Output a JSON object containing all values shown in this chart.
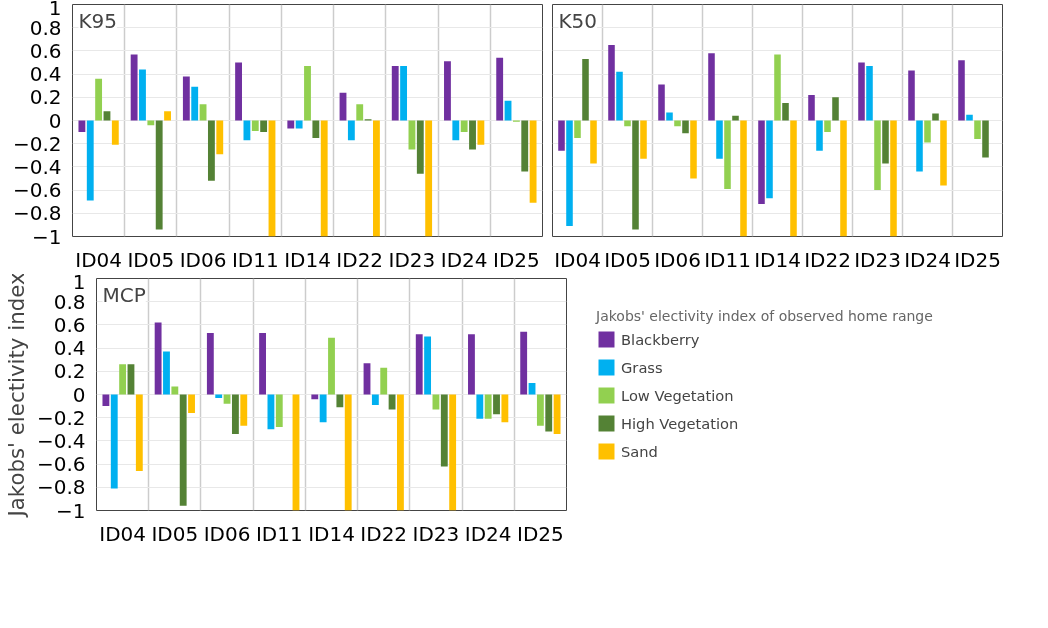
{
  "chart_data": [
    {
      "type": "bar",
      "title": "K95",
      "categories": [
        "ID04",
        "ID05",
        "ID06",
        "ID11",
        "ID14",
        "ID22",
        "ID23",
        "ID24",
        "ID25"
      ],
      "ylim": [
        -1,
        1
      ],
      "yticks": [
        -1,
        -0.8,
        -0.6,
        -0.4,
        -0.2,
        0,
        0.2,
        0.4,
        0.6,
        0.8,
        1
      ],
      "grid": true,
      "series": [
        {
          "color": "#7030a0",
          "values": [
            -0.1,
            0.57,
            0.38,
            0.5,
            -0.07,
            0.24,
            0.47,
            0.51,
            0.54
          ]
        },
        {
          "color": "#00b0f0",
          "values": [
            -0.69,
            0.44,
            0.29,
            -0.17,
            -0.07,
            -0.17,
            0.47,
            -0.17,
            0.17
          ]
        },
        {
          "color": "#92d050",
          "values": [
            0.36,
            -0.04,
            0.14,
            -0.09,
            0.47,
            0.14,
            -0.25,
            -0.1,
            -0.01
          ]
        },
        {
          "color": "#548235",
          "values": [
            0.08,
            -0.94,
            -0.52,
            -0.1,
            -0.15,
            0.01,
            -0.46,
            -0.25,
            -0.44
          ]
        },
        {
          "color": "#ffc000",
          "values": [
            -0.21,
            0.08,
            -0.29,
            -1,
            -1,
            -1,
            -1,
            -0.21,
            -0.71
          ]
        }
      ]
    },
    {
      "type": "bar",
      "title": "K50",
      "categories": [
        "ID04",
        "ID05",
        "ID06",
        "ID11",
        "ID14",
        "ID22",
        "ID23",
        "ID24",
        "ID25"
      ],
      "ylim": [
        -1,
        1
      ],
      "yticks": [
        -1,
        -0.8,
        -0.6,
        -0.4,
        -0.2,
        0,
        0.2,
        0.4,
        0.6,
        0.8,
        1
      ],
      "grid": true,
      "tick_labels": "x",
      "series": [
        {
          "color": "#7030a0",
          "values": [
            -0.26,
            0.65,
            0.31,
            0.58,
            -0.72,
            0.22,
            0.5,
            0.43,
            0.52
          ]
        },
        {
          "color": "#00b0f0",
          "values": [
            -0.91,
            0.42,
            0.07,
            -0.33,
            -0.67,
            -0.26,
            0.47,
            -0.44,
            0.05
          ]
        },
        {
          "color": "#92d050",
          "values": [
            -0.15,
            -0.05,
            -0.05,
            -0.59,
            0.57,
            -0.1,
            -0.6,
            -0.19,
            -0.16
          ]
        },
        {
          "color": "#548235",
          "values": [
            0.53,
            -0.94,
            -0.11,
            0.04,
            0.15,
            0.2,
            -0.37,
            0.06,
            -0.32
          ]
        },
        {
          "color": "#ffc000",
          "values": [
            -0.37,
            -0.33,
            -0.5,
            -1,
            -1,
            -1,
            -1,
            -0.56,
            null
          ]
        }
      ]
    },
    {
      "type": "bar",
      "title": "MCP",
      "ylabel": "Jakobs' electivity index",
      "legend_title": "Jakobs' electivity index of observed home range",
      "legend": "right",
      "categories": [
        "ID04",
        "ID05",
        "ID06",
        "ID11",
        "ID14",
        "ID22",
        "ID23",
        "ID24",
        "ID25"
      ],
      "ylim": [
        -1,
        1
      ],
      "yticks": [
        -1,
        -0.8,
        -0.6,
        -0.4,
        -0.2,
        0,
        0.2,
        0.4,
        0.6,
        0.8,
        1
      ],
      "grid": true,
      "series": [
        {
          "name": "Blackberry",
          "color": "#7030a0",
          "values": [
            -0.1,
            0.62,
            0.53,
            0.53,
            -0.04,
            0.27,
            0.52,
            0.52,
            0.54
          ]
        },
        {
          "name": "Grass",
          "color": "#00b0f0",
          "values": [
            -0.81,
            0.37,
            -0.03,
            -0.3,
            -0.24,
            -0.09,
            0.5,
            -0.21,
            0.1
          ]
        },
        {
          "name": "Low Vegetation",
          "color": "#92d050",
          "values": [
            0.26,
            0.07,
            -0.08,
            -0.28,
            0.49,
            0.23,
            -0.13,
            -0.21,
            -0.27
          ]
        },
        {
          "name": "High Vegetation",
          "color": "#548235",
          "values": [
            0.26,
            -0.96,
            -0.34,
            0,
            -0.11,
            -0.13,
            -0.62,
            -0.17,
            -0.32
          ]
        },
        {
          "name": "Sand",
          "color": "#ffc000",
          "values": [
            -0.66,
            -0.16,
            -0.27,
            -1,
            -1,
            -1,
            -1,
            -0.24,
            -0.34
          ]
        }
      ]
    }
  ]
}
